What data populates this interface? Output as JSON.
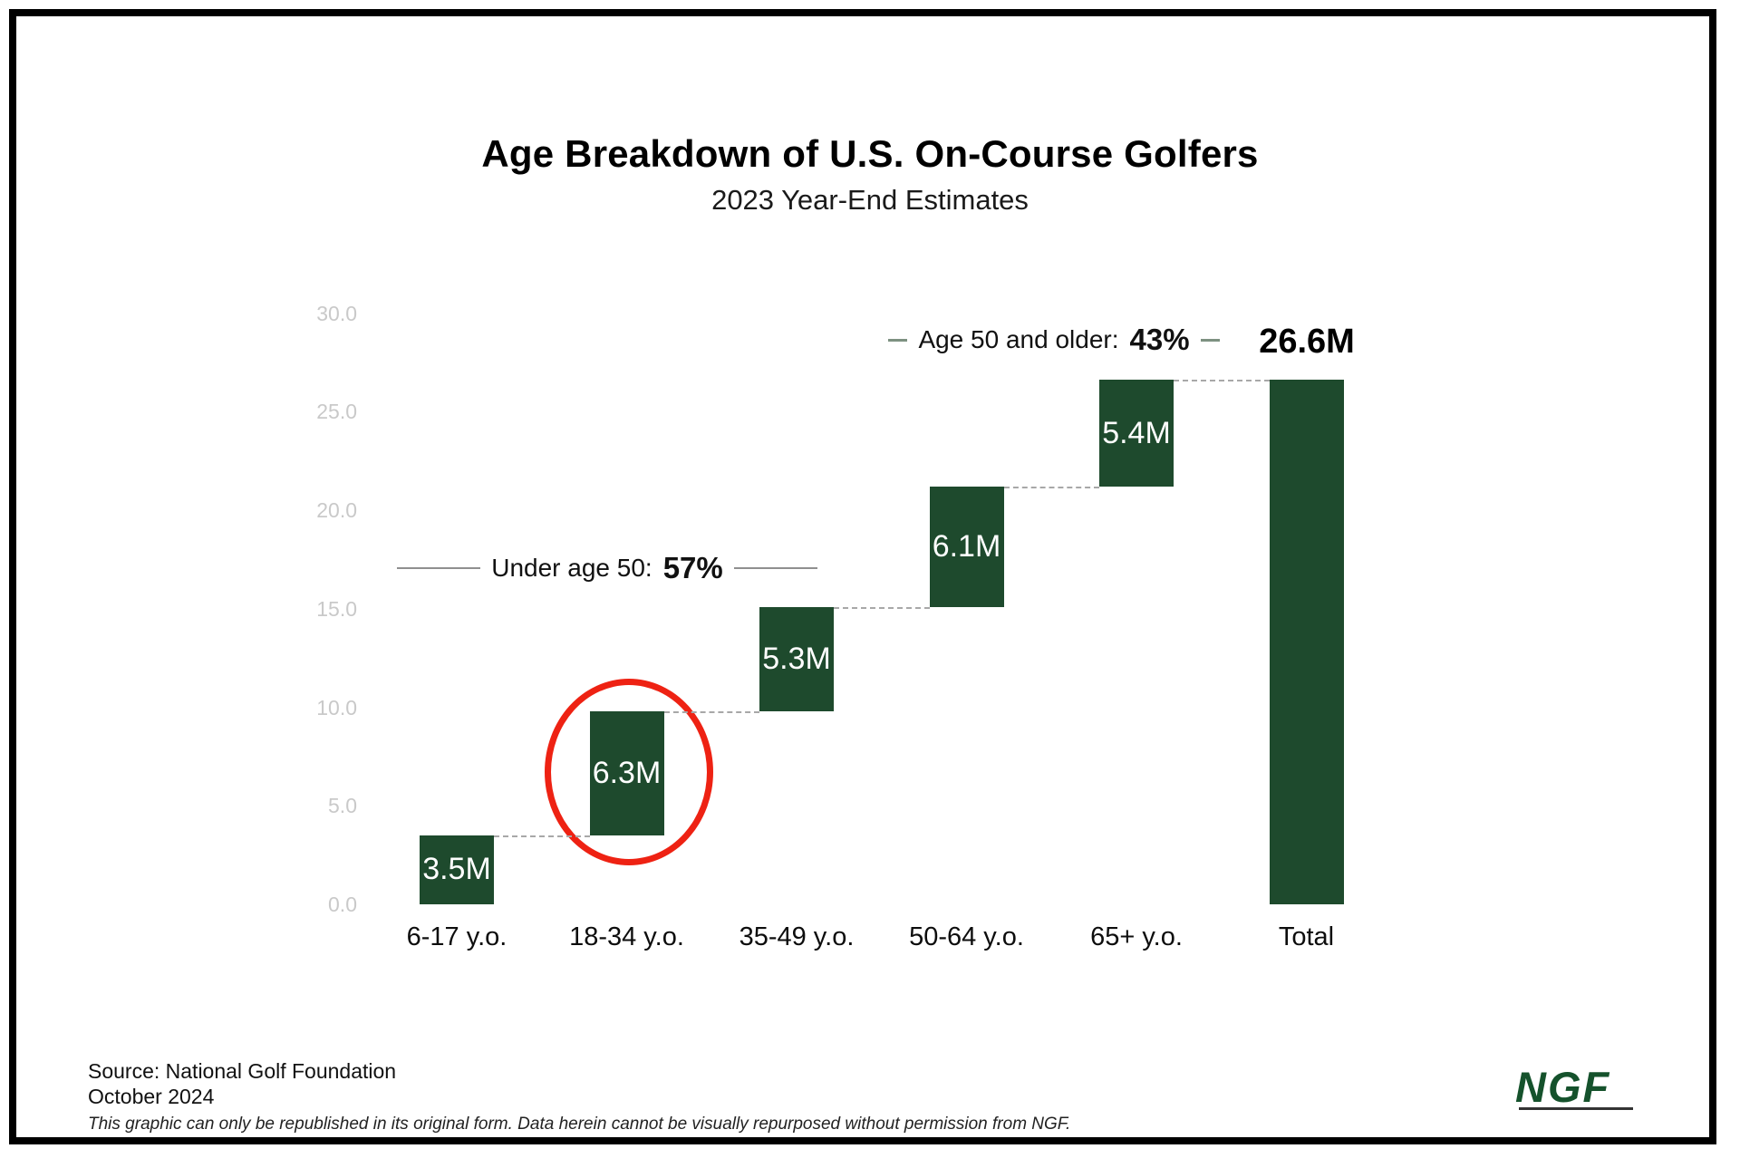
{
  "title": "Age Breakdown of U.S. On-Course Golfers",
  "subtitle": "2023 Year-End Estimates",
  "chart_data": {
    "type": "bar",
    "subtype": "waterfall",
    "categories": [
      "6-17 y.o.",
      "18-34 y.o.",
      "35-49 y.o.",
      "50-64 y.o.",
      "65+ y.o.",
      "Total"
    ],
    "values": [
      3.5,
      6.3,
      5.3,
      6.1,
      5.4,
      26.6
    ],
    "starts": [
      0,
      3.5,
      9.8,
      15.1,
      21.2,
      0
    ],
    "bar_labels": [
      "3.5M",
      "6.3M",
      "5.3M",
      "6.1M",
      "5.4M",
      ""
    ],
    "total_label": "26.6M",
    "ylim": [
      0,
      30
    ],
    "yticks": [
      {
        "label": "30.0",
        "value": 30
      },
      {
        "label": "25.0",
        "value": 25
      },
      {
        "label": "20.0",
        "value": 20
      },
      {
        "label": "15.0",
        "value": 15
      },
      {
        "label": "10.0",
        "value": 10
      },
      {
        "label": "5.0",
        "value": 5
      },
      {
        "label": "0.0",
        "value": 0
      }
    ],
    "grid": false,
    "legend": "none",
    "bar_color": "#1e4a2d",
    "connector_color": "#a8a8a8",
    "annotations": [
      {
        "text": "Under age 50:",
        "pct": "57%"
      },
      {
        "text": "Age 50 and older:",
        "pct": "43%"
      }
    ],
    "highlight": {
      "shape": "ellipse",
      "category": "18-34 y.o.",
      "color": "#ee2213"
    }
  },
  "footer": {
    "source": "Source: National Golf Foundation",
    "date": "October 2024",
    "legal": "This graphic can only be republished in its original form. Data herein cannot be visually repurposed without permission from NGF."
  },
  "logo": {
    "text": "NGF"
  }
}
